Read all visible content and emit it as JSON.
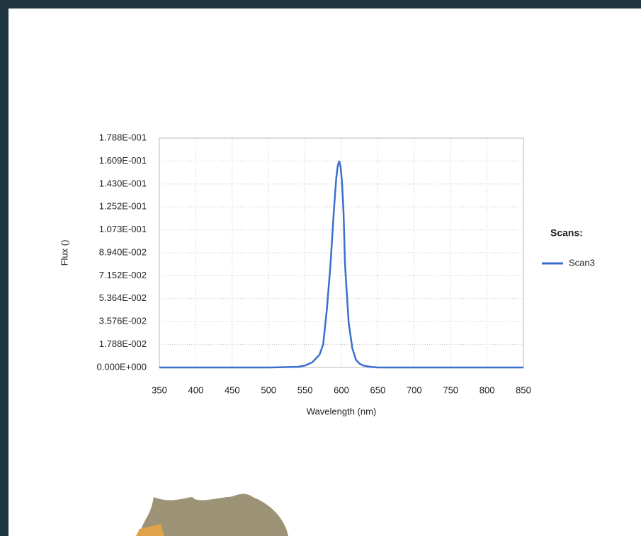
{
  "chart_data": {
    "type": "line",
    "x_label": "Wavelength (nm)",
    "y_label": "Flux ()",
    "legend_title": "Scans:",
    "x": [
      350,
      400,
      450,
      500,
      540,
      550,
      560,
      570,
      575,
      580,
      585,
      590,
      593,
      595,
      597,
      599,
      601,
      603,
      605,
      610,
      615,
      620,
      625,
      630,
      640,
      650,
      700,
      750,
      800,
      850
    ],
    "series": [
      {
        "name": "Scan3",
        "color": "#3a6fcf",
        "values": [
          0,
          0,
          0,
          0,
          0.0005,
          0.0015,
          0.004,
          0.01,
          0.018,
          0.045,
          0.08,
          0.125,
          0.148,
          0.157,
          0.161,
          0.156,
          0.143,
          0.12,
          0.08,
          0.035,
          0.015,
          0.006,
          0.003,
          0.0015,
          0.0005,
          0,
          0,
          0,
          0,
          0
        ]
      }
    ],
    "xlim": [
      350,
      850
    ],
    "xticks": [
      350,
      400,
      450,
      500,
      550,
      600,
      650,
      700,
      750,
      800,
      850
    ],
    "ylim": [
      0,
      0.1788
    ],
    "yticks": [
      {
        "value": 0,
        "label": "0.000E+000"
      },
      {
        "value": 0.01788,
        "label": "1.788E-002"
      },
      {
        "value": 0.03576,
        "label": "3.576E-002"
      },
      {
        "value": 0.05364,
        "label": "5.364E-002"
      },
      {
        "value": 0.07152,
        "label": "7.152E-002"
      },
      {
        "value": 0.0894,
        "label": "8.940E-002"
      },
      {
        "value": 0.1073,
        "label": "1.073E-001"
      },
      {
        "value": 0.1252,
        "label": "1.252E-001"
      },
      {
        "value": 0.143,
        "label": "1.430E-001"
      },
      {
        "value": 0.1609,
        "label": "1.609E-001"
      },
      {
        "value": 0.1788,
        "label": "1.788E-001"
      }
    ],
    "grid": true
  }
}
